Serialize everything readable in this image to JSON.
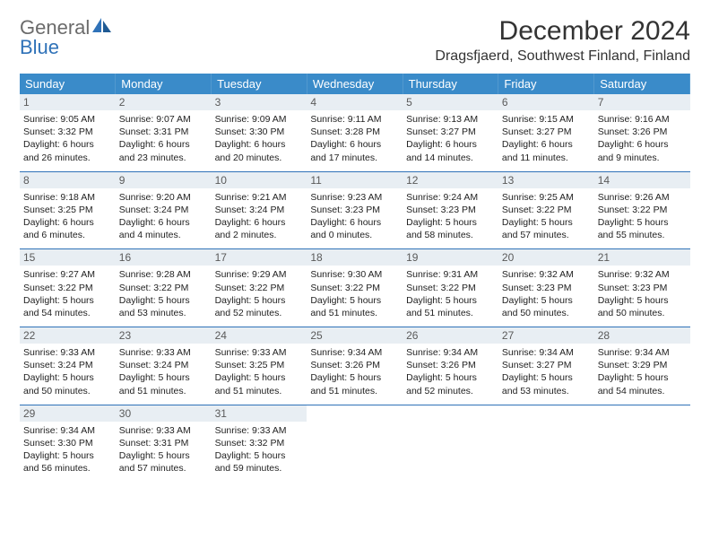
{
  "logo": {
    "general": "General",
    "blue": "Blue"
  },
  "header": {
    "month_title": "December 2024",
    "location": "Dragsfjaerd, Southwest Finland, Finland"
  },
  "colors": {
    "header_bg": "#3a8bc9",
    "accent": "#2f72b8",
    "daynum_bg": "#e8eef3",
    "text": "#222222",
    "logo_gray": "#6b6b6b"
  },
  "day_labels": [
    "Sunday",
    "Monday",
    "Tuesday",
    "Wednesday",
    "Thursday",
    "Friday",
    "Saturday"
  ],
  "weeks": [
    [
      {
        "n": "1",
        "sr": "9:05 AM",
        "ss": "3:32 PM",
        "dl": "6 hours and 26 minutes."
      },
      {
        "n": "2",
        "sr": "9:07 AM",
        "ss": "3:31 PM",
        "dl": "6 hours and 23 minutes."
      },
      {
        "n": "3",
        "sr": "9:09 AM",
        "ss": "3:30 PM",
        "dl": "6 hours and 20 minutes."
      },
      {
        "n": "4",
        "sr": "9:11 AM",
        "ss": "3:28 PM",
        "dl": "6 hours and 17 minutes."
      },
      {
        "n": "5",
        "sr": "9:13 AM",
        "ss": "3:27 PM",
        "dl": "6 hours and 14 minutes."
      },
      {
        "n": "6",
        "sr": "9:15 AM",
        "ss": "3:27 PM",
        "dl": "6 hours and 11 minutes."
      },
      {
        "n": "7",
        "sr": "9:16 AM",
        "ss": "3:26 PM",
        "dl": "6 hours and 9 minutes."
      }
    ],
    [
      {
        "n": "8",
        "sr": "9:18 AM",
        "ss": "3:25 PM",
        "dl": "6 hours and 6 minutes."
      },
      {
        "n": "9",
        "sr": "9:20 AM",
        "ss": "3:24 PM",
        "dl": "6 hours and 4 minutes."
      },
      {
        "n": "10",
        "sr": "9:21 AM",
        "ss": "3:24 PM",
        "dl": "6 hours and 2 minutes."
      },
      {
        "n": "11",
        "sr": "9:23 AM",
        "ss": "3:23 PM",
        "dl": "6 hours and 0 minutes."
      },
      {
        "n": "12",
        "sr": "9:24 AM",
        "ss": "3:23 PM",
        "dl": "5 hours and 58 minutes."
      },
      {
        "n": "13",
        "sr": "9:25 AM",
        "ss": "3:22 PM",
        "dl": "5 hours and 57 minutes."
      },
      {
        "n": "14",
        "sr": "9:26 AM",
        "ss": "3:22 PM",
        "dl": "5 hours and 55 minutes."
      }
    ],
    [
      {
        "n": "15",
        "sr": "9:27 AM",
        "ss": "3:22 PM",
        "dl": "5 hours and 54 minutes."
      },
      {
        "n": "16",
        "sr": "9:28 AM",
        "ss": "3:22 PM",
        "dl": "5 hours and 53 minutes."
      },
      {
        "n": "17",
        "sr": "9:29 AM",
        "ss": "3:22 PM",
        "dl": "5 hours and 52 minutes."
      },
      {
        "n": "18",
        "sr": "9:30 AM",
        "ss": "3:22 PM",
        "dl": "5 hours and 51 minutes."
      },
      {
        "n": "19",
        "sr": "9:31 AM",
        "ss": "3:22 PM",
        "dl": "5 hours and 51 minutes."
      },
      {
        "n": "20",
        "sr": "9:32 AM",
        "ss": "3:23 PM",
        "dl": "5 hours and 50 minutes."
      },
      {
        "n": "21",
        "sr": "9:32 AM",
        "ss": "3:23 PM",
        "dl": "5 hours and 50 minutes."
      }
    ],
    [
      {
        "n": "22",
        "sr": "9:33 AM",
        "ss": "3:24 PM",
        "dl": "5 hours and 50 minutes."
      },
      {
        "n": "23",
        "sr": "9:33 AM",
        "ss": "3:24 PM",
        "dl": "5 hours and 51 minutes."
      },
      {
        "n": "24",
        "sr": "9:33 AM",
        "ss": "3:25 PM",
        "dl": "5 hours and 51 minutes."
      },
      {
        "n": "25",
        "sr": "9:34 AM",
        "ss": "3:26 PM",
        "dl": "5 hours and 51 minutes."
      },
      {
        "n": "26",
        "sr": "9:34 AM",
        "ss": "3:26 PM",
        "dl": "5 hours and 52 minutes."
      },
      {
        "n": "27",
        "sr": "9:34 AM",
        "ss": "3:27 PM",
        "dl": "5 hours and 53 minutes."
      },
      {
        "n": "28",
        "sr": "9:34 AM",
        "ss": "3:29 PM",
        "dl": "5 hours and 54 minutes."
      }
    ],
    [
      {
        "n": "29",
        "sr": "9:34 AM",
        "ss": "3:30 PM",
        "dl": "5 hours and 56 minutes."
      },
      {
        "n": "30",
        "sr": "9:33 AM",
        "ss": "3:31 PM",
        "dl": "5 hours and 57 minutes."
      },
      {
        "n": "31",
        "sr": "9:33 AM",
        "ss": "3:32 PM",
        "dl": "5 hours and 59 minutes."
      },
      null,
      null,
      null,
      null
    ]
  ],
  "labels": {
    "sunrise": "Sunrise:",
    "sunset": "Sunset:",
    "daylight": "Daylight:"
  }
}
